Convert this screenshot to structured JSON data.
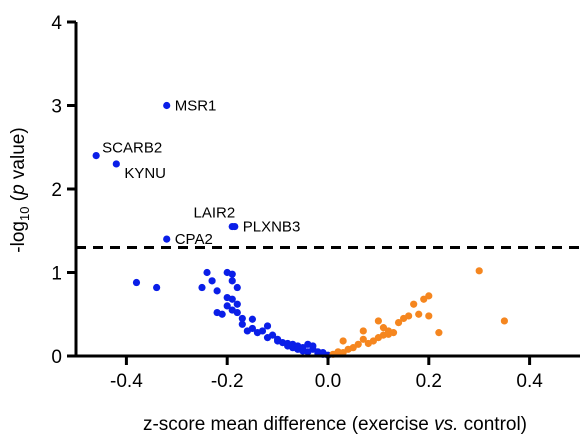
{
  "chart_data": {
    "type": "scatter",
    "xlabel": {
      "pre": "z-score mean difference (exercise ",
      "italic": "vs.",
      "post": " control)"
    },
    "ylabel": {
      "pre": "-log",
      "sub": "10",
      "mid": " (",
      "italic": "p",
      "post": " value)"
    },
    "xlim": [
      -0.5,
      0.5
    ],
    "ylim": [
      0,
      4
    ],
    "xticks": [
      -0.4,
      -0.2,
      0.0,
      0.2,
      0.4
    ],
    "xtick_labels": [
      "-0.4",
      "-0.2",
      "0.0",
      "0.2",
      "0.4"
    ],
    "yticks": [
      0,
      1,
      2,
      3,
      4
    ],
    "ytick_labels": [
      "0",
      "1",
      "2",
      "3",
      "4"
    ],
    "threshold": {
      "y": 1.3,
      "style": "dashed"
    },
    "colors": {
      "negative": "#0a1ee8",
      "positive": "#f5861f"
    },
    "labeled_points": [
      {
        "label": "MSR1",
        "x": -0.32,
        "y": 3.0,
        "label_side": "right"
      },
      {
        "label": "SCARB2",
        "x": -0.46,
        "y": 2.4,
        "label_side": "right-up"
      },
      {
        "label": "KYNU",
        "x": -0.42,
        "y": 2.3,
        "label_side": "right-down"
      },
      {
        "label": "LAIR2",
        "x": -0.19,
        "y": 1.55,
        "label_side": "above-left"
      },
      {
        "label": "PLXNB3",
        "x": -0.185,
        "y": 1.55,
        "label_side": "right"
      },
      {
        "label": "CPA2",
        "x": -0.32,
        "y": 1.4,
        "label_side": "right"
      }
    ],
    "series": [
      {
        "color_key": "negative",
        "points": [
          [
            -0.38,
            0.88
          ],
          [
            -0.34,
            0.82
          ],
          [
            -0.25,
            0.82
          ],
          [
            -0.24,
            1.0
          ],
          [
            -0.23,
            0.9
          ],
          [
            -0.22,
            0.78
          ],
          [
            -0.22,
            0.52
          ],
          [
            -0.2,
            1.0
          ],
          [
            -0.19,
            0.98
          ],
          [
            -0.19,
            0.9
          ],
          [
            -0.18,
            0.82
          ],
          [
            -0.2,
            0.7
          ],
          [
            -0.19,
            0.68
          ],
          [
            -0.18,
            0.62
          ],
          [
            -0.2,
            0.6
          ],
          [
            -0.19,
            0.55
          ],
          [
            -0.18,
            0.52
          ],
          [
            -0.21,
            0.5
          ],
          [
            -0.17,
            0.45
          ],
          [
            -0.17,
            0.38
          ],
          [
            -0.15,
            0.44
          ],
          [
            -0.15,
            0.33
          ],
          [
            -0.16,
            0.3
          ],
          [
            -0.14,
            0.28
          ],
          [
            -0.13,
            0.3
          ],
          [
            -0.12,
            0.36
          ],
          [
            -0.12,
            0.22
          ],
          [
            -0.11,
            0.25
          ],
          [
            -0.1,
            0.2
          ],
          [
            -0.1,
            0.18
          ],
          [
            -0.09,
            0.16
          ],
          [
            -0.08,
            0.15
          ],
          [
            -0.08,
            0.12
          ],
          [
            -0.07,
            0.14
          ],
          [
            -0.07,
            0.1
          ],
          [
            -0.06,
            0.12
          ],
          [
            -0.06,
            0.08
          ],
          [
            -0.05,
            0.1
          ],
          [
            -0.05,
            0.06
          ],
          [
            -0.04,
            0.14
          ],
          [
            -0.04,
            0.05
          ],
          [
            -0.03,
            0.08
          ],
          [
            -0.03,
            0.12
          ],
          [
            -0.02,
            0.05
          ],
          [
            -0.02,
            0.03
          ],
          [
            -0.01,
            0.04
          ],
          [
            -0.01,
            0.02
          ],
          [
            0.0,
            0.01
          ]
        ]
      },
      {
        "color_key": "positive",
        "points": [
          [
            0.01,
            0.02
          ],
          [
            0.02,
            0.05
          ],
          [
            0.03,
            0.04
          ],
          [
            0.03,
            0.18
          ],
          [
            0.04,
            0.08
          ],
          [
            0.05,
            0.1
          ],
          [
            0.06,
            0.14
          ],
          [
            0.07,
            0.2
          ],
          [
            0.07,
            0.3
          ],
          [
            0.08,
            0.15
          ],
          [
            0.09,
            0.18
          ],
          [
            0.1,
            0.22
          ],
          [
            0.1,
            0.42
          ],
          [
            0.11,
            0.25
          ],
          [
            0.11,
            0.34
          ],
          [
            0.12,
            0.26
          ],
          [
            0.12,
            0.3
          ],
          [
            0.13,
            0.28
          ],
          [
            0.14,
            0.4
          ],
          [
            0.15,
            0.45
          ],
          [
            0.16,
            0.48
          ],
          [
            0.17,
            0.62
          ],
          [
            0.18,
            0.5
          ],
          [
            0.19,
            0.68
          ],
          [
            0.2,
            0.72
          ],
          [
            0.2,
            0.48
          ],
          [
            0.22,
            0.28
          ],
          [
            0.3,
            1.02
          ],
          [
            0.35,
            0.42
          ]
        ]
      }
    ]
  }
}
